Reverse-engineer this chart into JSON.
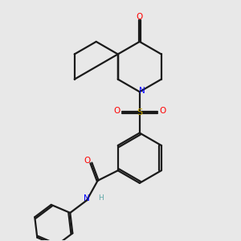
{
  "background_color": "#e8e8e8",
  "bond_color": "#1a1a1a",
  "nitrogen_color": "#0000ff",
  "oxygen_color": "#ff0000",
  "sulfur_color": "#ccaa00",
  "hydrogen_color": "#5fa8a8",
  "line_width": 1.6,
  "figsize": [
    3.0,
    3.0
  ],
  "dpi": 100,
  "xlim": [
    0,
    10
  ],
  "ylim": [
    0,
    10
  ]
}
